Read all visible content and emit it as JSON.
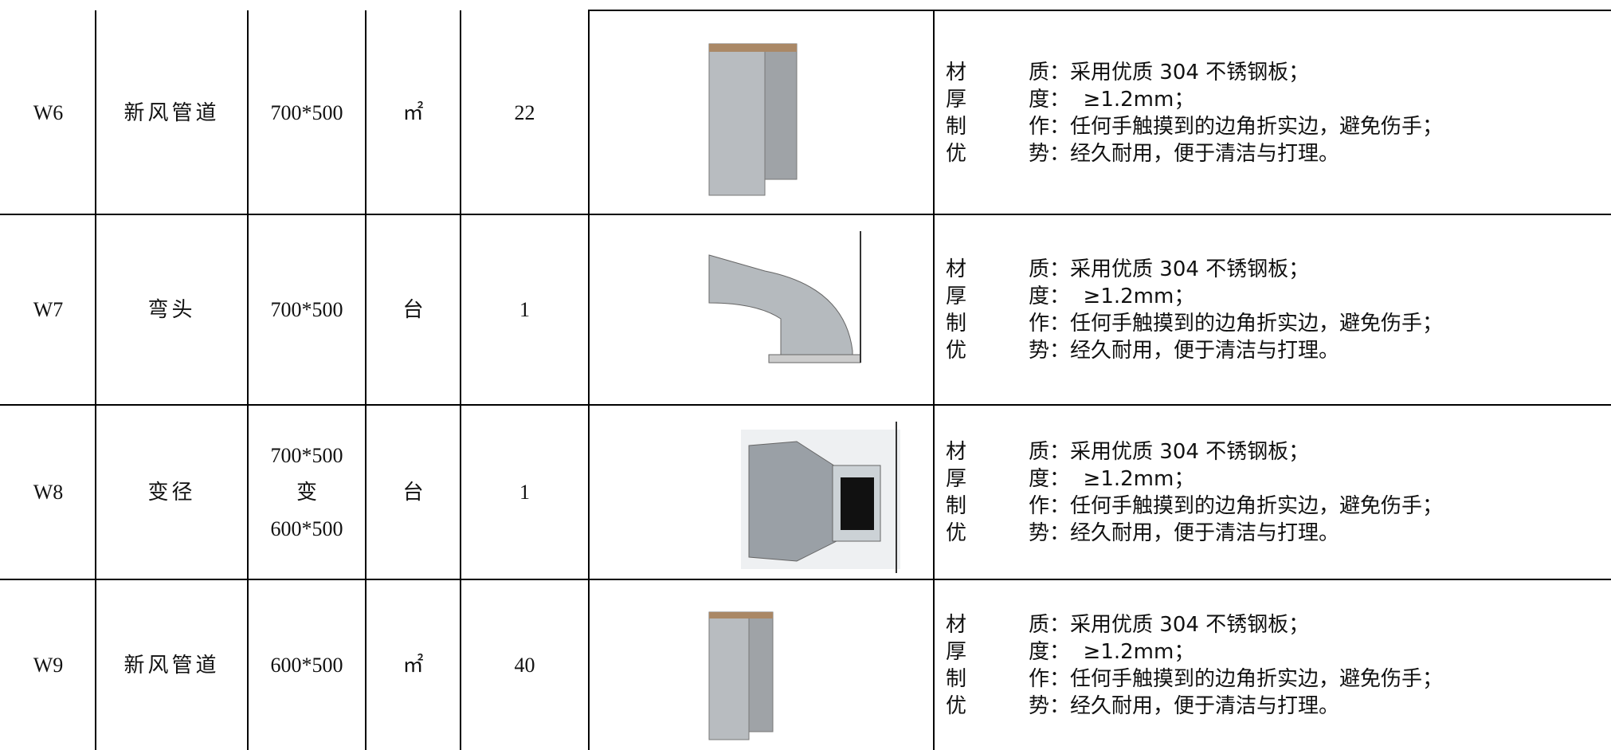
{
  "table": {
    "rows": [
      {
        "code": "W6",
        "name": "新风管道",
        "spec": [
          "700*500"
        ],
        "unit": "㎡",
        "qty": "22",
        "desc": [
          {
            "label": "材　　　质",
            "text": "：采用优质 304 不锈钢板；"
          },
          {
            "label": "厚　　　度",
            "text": "：  ≥1.2mm；"
          },
          {
            "label": "制　　　作",
            "text": "：任何手触摸到的边角折实边，避免伤手；"
          },
          {
            "label": "优　　　势",
            "text": "：经久耐用，便于清洁与打理。"
          }
        ]
      },
      {
        "code": "W7",
        "name": "弯头",
        "spec": [
          "700*500"
        ],
        "unit": "台",
        "qty": "1",
        "desc": [
          {
            "label": "材　　　质",
            "text": "：采用优质 304 不锈钢板；"
          },
          {
            "label": "厚　　　度",
            "text": "：  ≥1.2mm；"
          },
          {
            "label": "制　　　作",
            "text": "：任何手触摸到的边角折实边，避免伤手；"
          },
          {
            "label": "优　　　势",
            "text": "：经久耐用，便于清洁与打理。"
          }
        ]
      },
      {
        "code": "W8",
        "name": "变径",
        "spec": [
          "700*500",
          "变",
          "600*500"
        ],
        "unit": "台",
        "qty": "1",
        "desc": [
          {
            "label": "材　　　质",
            "text": "：采用优质 304 不锈钢板；"
          },
          {
            "label": "厚　　　度",
            "text": "：  ≥1.2mm；"
          },
          {
            "label": "制　　　作",
            "text": "：任何手触摸到的边角折实边，避免伤手；"
          },
          {
            "label": "优　　　势",
            "text": "：经久耐用，便于清洁与打理。"
          }
        ]
      },
      {
        "code": "W9",
        "name": "新风管道",
        "spec": [
          "600*500"
        ],
        "unit": "㎡",
        "qty": "40",
        "desc": [
          {
            "label": "材　　　质",
            "text": "：采用优质 304 不锈钢板；"
          },
          {
            "label": "厚　　　度",
            "text": "：  ≥1.2mm；"
          },
          {
            "label": "制　　　作",
            "text": "：任何手触摸到的边角折实边，避免伤手；"
          },
          {
            "label": "优　　　势",
            "text": "：经久耐用，便于清洁与打理。"
          }
        ]
      }
    ]
  }
}
